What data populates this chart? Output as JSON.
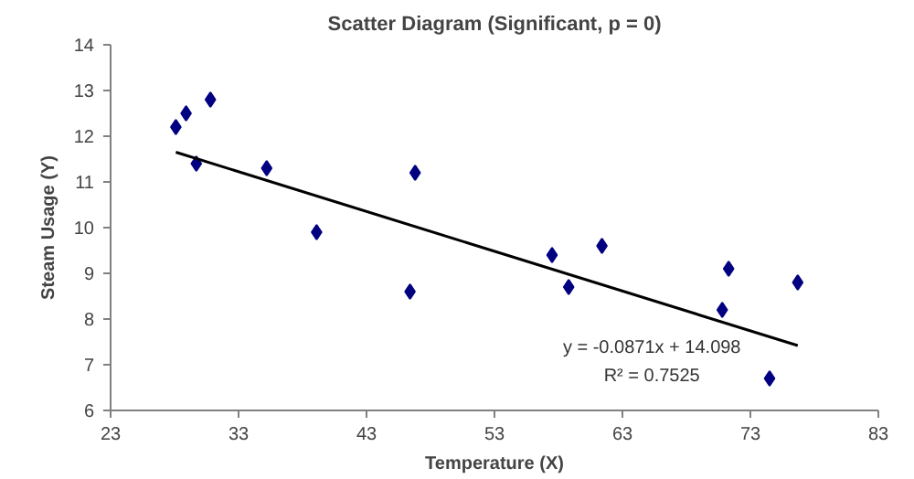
{
  "chart_data": {
    "type": "scatter",
    "title": "Scatter Diagram (Significant, p = 0)",
    "xlabel": "Temperature (X)",
    "ylabel": "Steam Usage (Y)",
    "xlim": [
      23,
      83
    ],
    "xticks": [
      23,
      33,
      43,
      53,
      63,
      73,
      83
    ],
    "ylim": [
      6,
      14
    ],
    "yticks": [
      6,
      7,
      8,
      9,
      10,
      11,
      12,
      13,
      14
    ],
    "grid": false,
    "series": [
      {
        "marker": "diamond",
        "color": "#000080",
        "x": [
          28.1,
          28.9,
          29.7,
          30.8,
          35.2,
          39.1,
          46.4,
          46.8,
          57.5,
          58.8,
          61.4,
          70.8,
          71.3,
          74.5,
          76.7
        ],
        "values": [
          12.2,
          12.5,
          11.4,
          12.8,
          11.3,
          9.9,
          8.6,
          11.2,
          9.4,
          8.7,
          9.6,
          8.2,
          9.1,
          6.7,
          8.8
        ]
      },
      {
        "type": "line",
        "color": "#000000",
        "x": [
          28.1,
          76.7
        ],
        "values": [
          11.65,
          7.42
        ]
      }
    ],
    "annotations": [
      "y = -0.0871x + 14.098",
      "R² = 0.7525"
    ]
  }
}
